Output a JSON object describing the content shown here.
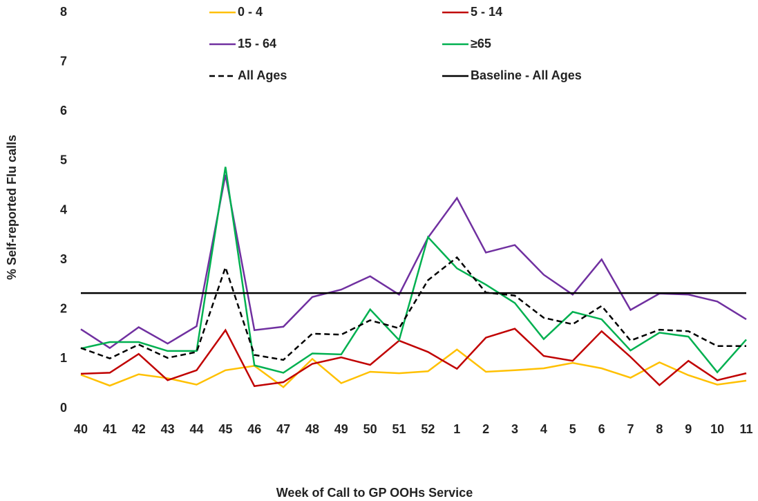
{
  "chart_data": {
    "type": "line",
    "x_label": "Week of Call to GP OOHs Service",
    "y_label": "% Self-reported Flu calls",
    "categories": [
      "40",
      "41",
      "42",
      "43",
      "44",
      "45",
      "46",
      "47",
      "48",
      "49",
      "50",
      "51",
      "52",
      "1",
      "2",
      "3",
      "4",
      "5",
      "6",
      "7",
      "8",
      "9",
      "10",
      "11"
    ],
    "ylim": [
      0,
      8
    ],
    "yticks": [
      0,
      1,
      2,
      3,
      4,
      5,
      6,
      7,
      8
    ],
    "legend": "top",
    "series": [
      {
        "name": "0 - 4",
        "color": "#ffc000",
        "values": [
          0.68,
          0.46,
          0.69,
          0.61,
          0.48,
          0.77,
          0.86,
          0.43,
          1.0,
          0.51,
          0.74,
          0.71,
          0.75,
          1.19,
          0.74,
          0.77,
          0.81,
          0.92,
          0.81,
          0.62,
          0.93,
          0.67,
          0.48,
          0.56
        ]
      },
      {
        "name": "5 - 14",
        "color": "#c00000",
        "values": [
          0.7,
          0.72,
          1.1,
          0.57,
          0.77,
          1.58,
          0.45,
          0.53,
          0.9,
          1.03,
          0.88,
          1.37,
          1.14,
          0.8,
          1.43,
          1.61,
          1.06,
          0.96,
          1.56,
          1.04,
          0.47,
          0.96,
          0.57,
          0.71
        ]
      },
      {
        "name": "15 - 64",
        "color": "#7030a0",
        "values": [
          1.6,
          1.22,
          1.64,
          1.31,
          1.66,
          4.72,
          1.58,
          1.65,
          2.25,
          2.4,
          2.67,
          2.3,
          3.45,
          4.25,
          3.15,
          3.3,
          2.7,
          2.3,
          3.01,
          1.99,
          2.32,
          2.3,
          2.16,
          1.8
        ]
      },
      {
        "name": "≥65",
        "color": "#00b050",
        "values": [
          1.21,
          1.34,
          1.34,
          1.16,
          1.16,
          4.88,
          0.87,
          0.72,
          1.11,
          1.09,
          2.0,
          1.38,
          3.46,
          2.83,
          2.5,
          2.13,
          1.4,
          1.95,
          1.8,
          1.17,
          1.53,
          1.45,
          0.73,
          1.39
        ]
      },
      {
        "name": "All Ages",
        "color": "#000000",
        "dashed": true,
        "values": [
          1.22,
          1.01,
          1.29,
          1.02,
          1.14,
          2.85,
          1.08,
          0.98,
          1.51,
          1.49,
          1.78,
          1.62,
          2.59,
          3.05,
          2.34,
          2.28,
          1.83,
          1.7,
          2.07,
          1.37,
          1.59,
          1.56,
          1.26,
          1.26
        ]
      },
      {
        "name": "Baseline - All Ages",
        "color": "#000000",
        "values": [
          2.33,
          2.33,
          2.33,
          2.33,
          2.33,
          2.33,
          2.33,
          2.33,
          2.33,
          2.33,
          2.33,
          2.33,
          2.33,
          2.33,
          2.33,
          2.33,
          2.33,
          2.33,
          2.33,
          2.33,
          2.33,
          2.33,
          2.33,
          2.33
        ]
      }
    ]
  }
}
